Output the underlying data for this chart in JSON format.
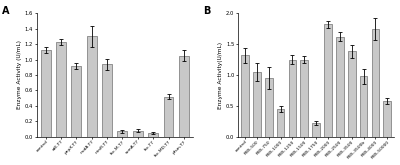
{
  "panel_A": {
    "categories": [
      "control",
      "atE-T7",
      "pnpX-T7",
      "nudA-T7",
      "nimR-T7",
      "fsc-M-T7",
      "ssmA-T7",
      "fsc-T7",
      "fsc-MD-T7",
      "pfsm-T7"
    ],
    "values": [
      1.12,
      1.23,
      0.92,
      1.3,
      0.94,
      0.07,
      0.08,
      0.05,
      0.52,
      1.05
    ],
    "errors": [
      0.04,
      0.04,
      0.04,
      0.14,
      0.07,
      0.02,
      0.02,
      0.01,
      0.03,
      0.07
    ],
    "ylabel": "Enzyme Activity (U/mL)",
    "ylim": [
      0,
      1.6
    ],
    "yticks": [
      0.0,
      0.2,
      0.4,
      0.6,
      0.8,
      1.0,
      1.2,
      1.4,
      1.6
    ],
    "bar_color": "#c8c8c8",
    "label": "A"
  },
  "panel_B": {
    "categories": [
      "control",
      "RBS-500",
      "RBS-750",
      "RBS-1000",
      "RBS-1250",
      "RBS-1500",
      "RBS-1750",
      "RBS-2000",
      "RBS-2500",
      "RBS-3500",
      "RBS-3500b",
      "RBS-4000",
      "RBS-50000"
    ],
    "values": [
      1.32,
      1.05,
      0.95,
      0.45,
      1.25,
      1.25,
      0.22,
      1.82,
      1.62,
      1.38,
      0.98,
      1.75,
      0.58
    ],
    "errors": [
      0.12,
      0.15,
      0.18,
      0.05,
      0.08,
      0.06,
      0.03,
      0.06,
      0.07,
      0.1,
      0.12,
      0.18,
      0.05
    ],
    "ylabel": "Enzyme Activity(U/mL)",
    "ylim": [
      0,
      2.0
    ],
    "yticks": [
      0.0,
      0.5,
      1.0,
      1.5,
      2.0
    ],
    "bar_color": "#c8c8c8",
    "label": "B"
  }
}
